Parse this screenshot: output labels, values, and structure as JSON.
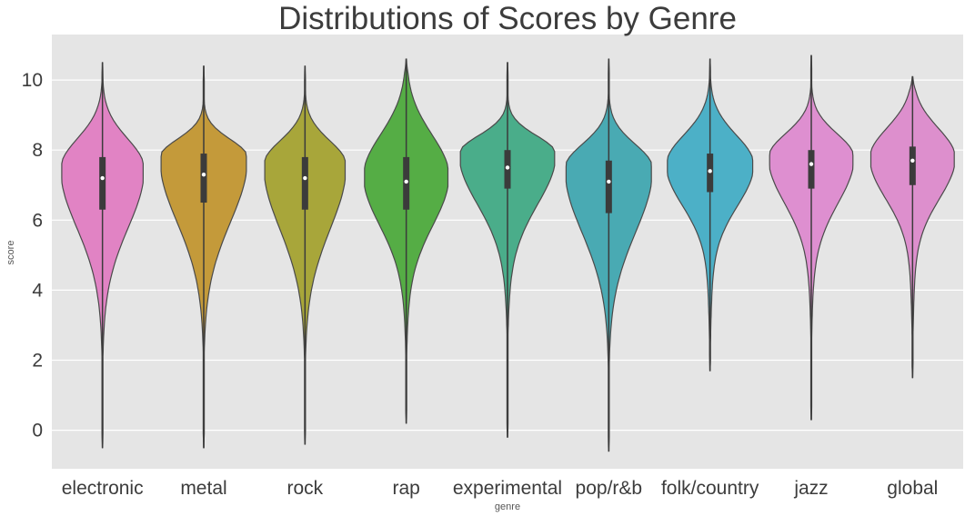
{
  "chart_data": {
    "type": "violin",
    "title": "Distributions of Scores by Genre",
    "xlabel": "genre",
    "ylabel": "score",
    "ylim": [
      -1.1,
      11.3
    ],
    "yticks": [
      0,
      2,
      4,
      6,
      8,
      10
    ],
    "grid": true,
    "categories": [
      "electronic",
      "metal",
      "rock",
      "rap",
      "experimental",
      "pop/r&b",
      "folk/country",
      "jazz",
      "global"
    ],
    "colors": [
      "#e183c4",
      "#c49a3a",
      "#a8a63a",
      "#55ad45",
      "#4aad8a",
      "#49aab3",
      "#4cb0c7",
      "#de8fd0",
      "#dd8fcd"
    ],
    "series": [
      {
        "genre": "electronic",
        "min": -0.5,
        "max": 10.5,
        "q1": 6.3,
        "median": 7.2,
        "q3": 7.8,
        "mode": 7.5,
        "width": 0.82
      },
      {
        "genre": "metal",
        "min": -0.5,
        "max": 10.4,
        "q1": 6.5,
        "median": 7.3,
        "q3": 7.9,
        "mode": 7.8,
        "width": 0.86
      },
      {
        "genre": "rock",
        "min": -0.4,
        "max": 10.4,
        "q1": 6.3,
        "median": 7.2,
        "q3": 7.8,
        "mode": 7.6,
        "width": 0.81
      },
      {
        "genre": "rap",
        "min": 0.2,
        "max": 10.6,
        "q1": 6.3,
        "median": 7.1,
        "q3": 7.8,
        "mode": 7.3,
        "width": 0.84
      },
      {
        "genre": "experimental",
        "min": -0.2,
        "max": 10.5,
        "q1": 6.9,
        "median": 7.5,
        "q3": 8.0,
        "mode": 7.9,
        "width": 0.95
      },
      {
        "genre": "pop/r&b",
        "min": -0.6,
        "max": 10.6,
        "q1": 6.2,
        "median": 7.1,
        "q3": 7.7,
        "mode": 7.5,
        "width": 0.86
      },
      {
        "genre": "folk/country",
        "min": 1.7,
        "max": 10.6,
        "q1": 6.8,
        "median": 7.4,
        "q3": 7.9,
        "mode": 7.6,
        "width": 0.86
      },
      {
        "genre": "jazz",
        "min": 0.3,
        "max": 10.7,
        "q1": 6.9,
        "median": 7.6,
        "q3": 8.0,
        "mode": 7.8,
        "width": 0.84
      },
      {
        "genre": "global",
        "min": 1.5,
        "max": 10.1,
        "q1": 7.0,
        "median": 7.7,
        "q3": 8.1,
        "mode": 7.8,
        "width": 0.84
      }
    ]
  }
}
